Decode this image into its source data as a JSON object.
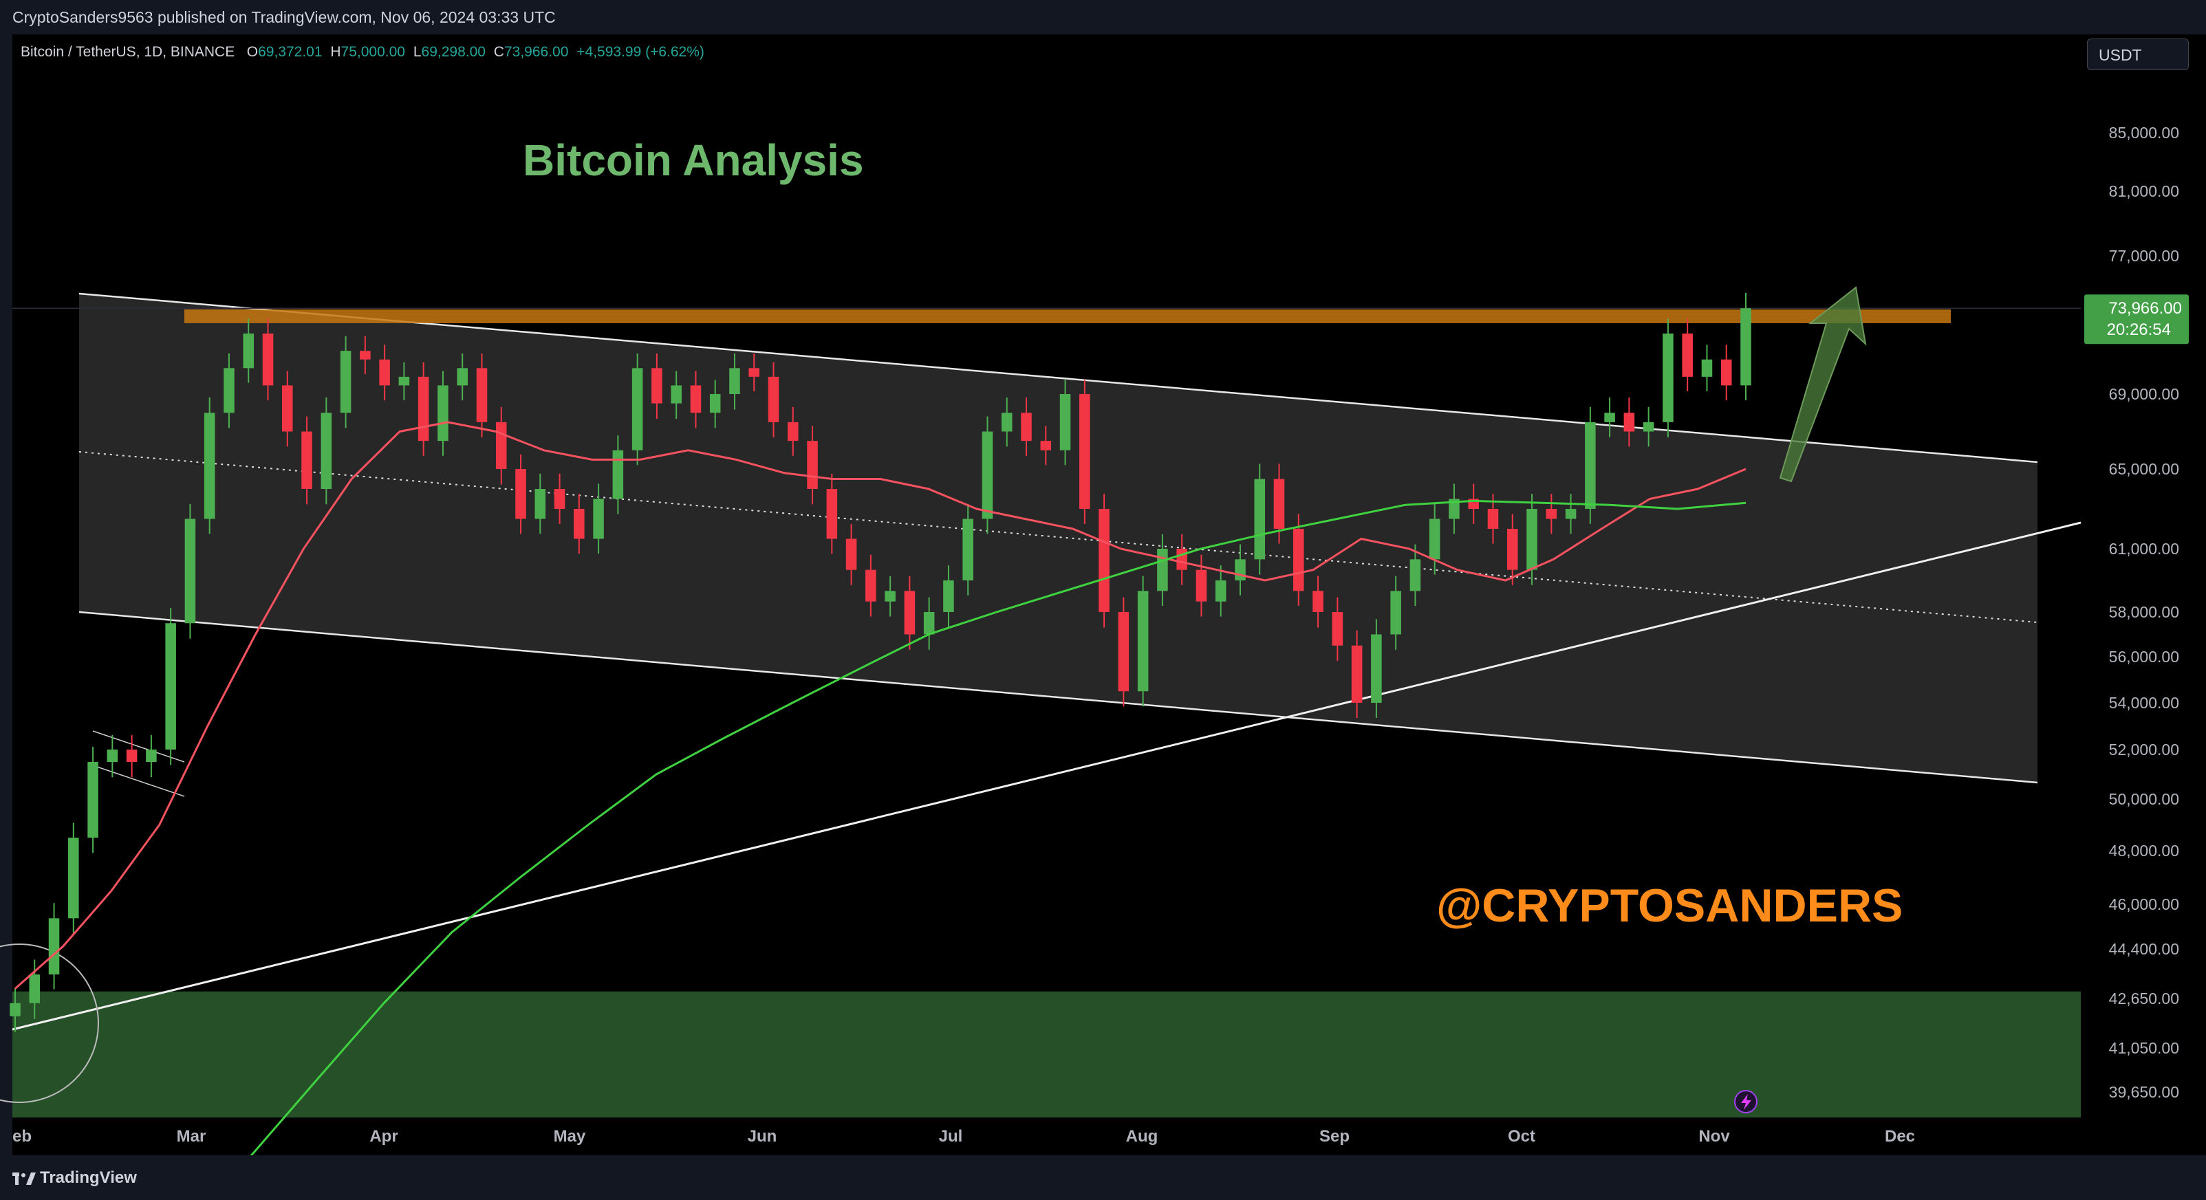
{
  "header": {
    "published": "CryptoSanders9563 published on TradingView.com, Nov 06, 2024 03:33 UTC"
  },
  "legend": {
    "symbol": "Bitcoin / TetherUS, 1D, BINANCE",
    "o_label": "O",
    "o_value": "69,372.01",
    "h_label": "H",
    "h_value": "75,000.00",
    "l_label": "L",
    "l_value": "69,298.00",
    "c_label": "C",
    "c_value": "73,966.00",
    "change": "+4,593.99 (+6.62%)"
  },
  "currency_button": "USDT",
  "branding": "TradingView",
  "colors": {
    "up": "#26a69a",
    "up_candle": "#4caf50",
    "down_candle": "#f23645",
    "ma_fast": "#f7525f",
    "ma_slow": "#3fd13f",
    "resistance": "#c87810",
    "support_zone": "#2d5e2f",
    "title": "#6db86d",
    "watermark": "#ff8c1a",
    "arrow": "#4a7a3a"
  },
  "chart_data": {
    "type": "line",
    "title": "Bitcoin Analysis",
    "watermark": "@CRYPTOSANDERS",
    "x_ticks": [
      "eb",
      "Mar",
      "Apr",
      "May",
      "Jun",
      "Jul",
      "Aug",
      "Sep",
      "Oct",
      "Nov",
      "Dec"
    ],
    "y_ticks": [
      "85,000.00",
      "81,000.00",
      "77,000.00",
      "69,000.00",
      "65,000.00",
      "61,000.00",
      "58,000.00",
      "56,000.00",
      "54,000.00",
      "52,000.00",
      "50,000.00",
      "48,000.00",
      "46,000.00",
      "44,400.00",
      "42,650.00",
      "41,050.00",
      "39,650.00"
    ],
    "last_price": "73,966.00",
    "countdown": "20:26:54",
    "resistance_level": 73500,
    "support_zone": [
      38500,
      42900
    ],
    "series": [
      {
        "values": [
          42500,
          43500,
          45500,
          48500,
          51500,
          52000,
          51500,
          52000,
          57500,
          62500,
          68000,
          70500,
          72500,
          69500,
          67000,
          64000,
          68000,
          71500,
          71000,
          69500,
          70000,
          66500,
          69500,
          70500,
          67500,
          65000,
          62500,
          64000,
          63000,
          61500,
          63500,
          66000,
          70500,
          68500,
          69500,
          68000,
          69000,
          70500,
          70000,
          67500,
          66500,
          64000,
          61500,
          60000,
          58500,
          59000,
          57000,
          58000,
          59500,
          62500,
          67000,
          68000,
          66500,
          66000,
          69000,
          63000,
          58000,
          54500,
          59000,
          61000,
          60000,
          58500,
          59500,
          60500,
          64500,
          62000,
          59000,
          58000,
          56500,
          54000,
          57000,
          59000,
          60500,
          62500,
          63500,
          63000,
          62000,
          60000,
          63000,
          62500,
          63000,
          67500,
          68000,
          67000,
          67500,
          72500,
          70000,
          71000,
          69500,
          73966
        ]
      },
      {
        "values": [
          43000,
          44500,
          46500,
          49000,
          53000,
          57000,
          61000,
          64500,
          67000,
          67500,
          67000,
          66000,
          65500,
          65500,
          66000,
          65500,
          64800,
          64500,
          64500,
          64000,
          63000,
          62500,
          62000,
          61000,
          60500,
          60000,
          59500,
          60000,
          61500,
          61000,
          60000,
          59500,
          60500,
          62000,
          63500,
          64000,
          65000
        ]
      },
      {
        "values": [
          37500,
          40000,
          42500,
          45000,
          47000,
          49000,
          51000,
          52500,
          54000,
          55500,
          57000,
          58000,
          59000,
          60000,
          61000,
          61800,
          62500,
          63200,
          63400,
          63300,
          63200,
          63000,
          63300
        ]
      }
    ]
  }
}
